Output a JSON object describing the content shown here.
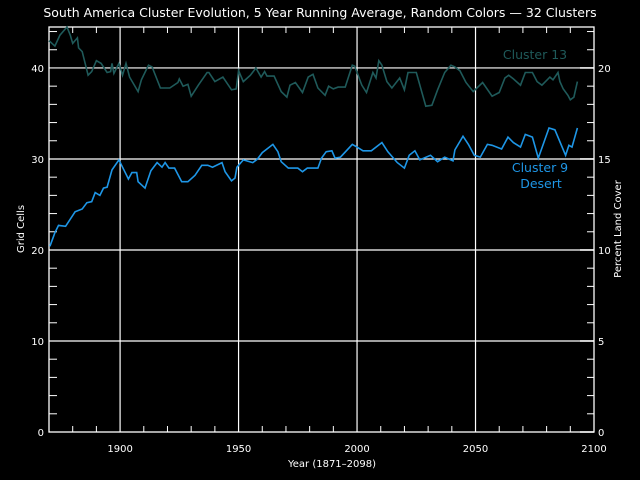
{
  "chart_data": {
    "type": "line",
    "title": "South America Cluster Evolution, 5 Year Running Average, Random Colors — 32 Clusters",
    "xlabel": "Year (1871–2098)",
    "ylabel": "Grid Cells",
    "ylabel_right": "Percent Land Cover",
    "xlim": [
      1870,
      2100
    ],
    "ylim": [
      0,
      44.5
    ],
    "ylim_right": [
      0,
      22.25
    ],
    "xticks": [
      "1900",
      "1950",
      "2000",
      "2050",
      "2100"
    ],
    "xtick_values": [
      1900,
      1950,
      2000,
      2050,
      2100
    ],
    "yticks": [
      "0",
      "10",
      "20",
      "30",
      "40"
    ],
    "ytick_values": [
      0,
      10,
      20,
      30,
      40
    ],
    "yticks_right": [
      "0",
      "5",
      "10",
      "15",
      "20"
    ],
    "ytick_right_values": [
      0,
      5,
      10,
      15,
      20
    ],
    "grid": true,
    "background": "#000000",
    "series": [
      {
        "name": "Cluster 13",
        "label_lines": [
          "Cluster 13"
        ],
        "color": "#1f5a5a",
        "x": [
          1870,
          1872.5,
          1874.6,
          1877.6,
          1879,
          1880,
          1882,
          1882.5,
          1884,
          1886.5,
          1888,
          1890,
          1892,
          1894.5,
          1896,
          1896.6,
          1897.4,
          1899.5,
          1901,
          1902.5,
          1904,
          1907.6,
          1909,
          1912,
          1913.5,
          1917,
          1921,
          1924.4,
          1925,
          1926.6,
          1928.6,
          1930,
          1933,
          1936.7,
          1937.5,
          1940,
          1943.4,
          1947,
          1949,
          1950,
          1952,
          1955,
          1957.3,
          1959.5,
          1961,
          1962,
          1965,
          1968,
          1970.4,
          1971.7,
          1974,
          1977,
          1979.4,
          1981.4,
          1983.5,
          1986.5,
          1988,
          1990,
          1992,
          1995,
          1998,
          1999,
          2002,
          2004,
          2006.7,
          2008,
          2009.2,
          2010.5,
          2012.6,
          2014.7,
          2018,
          2020,
          2021.5,
          2025,
          2029,
          2031.6,
          2034,
          2037,
          2039.6,
          2041.3,
          2043.4,
          2046,
          2049,
          2053,
          2057,
          2060,
          2062.4,
          2064,
          2066,
          2069,
          2071,
          2074,
          2076,
          2078,
          2081.4,
          2082.7,
          2084.8,
          2085.6,
          2087,
          2089,
          2090,
          2091.5,
          2093
        ],
        "y": [
          43.0,
          42.4,
          43.6,
          44.5,
          43.6,
          42.7,
          43.3,
          42.2,
          41.8,
          39.2,
          39.6,
          40.8,
          40.5,
          39.5,
          39.6,
          40.5,
          39.4,
          40.5,
          39.2,
          40.5,
          39.0,
          37.4,
          38.7,
          40.3,
          40.1,
          37.8,
          37.8,
          38.4,
          38.8,
          38.0,
          38.2,
          36.9,
          38.1,
          39.5,
          39.5,
          38.5,
          39.0,
          37.6,
          37.7,
          39.7,
          38.5,
          39.2,
          40.0,
          39.0,
          39.6,
          39.1,
          39.1,
          37.4,
          36.8,
          38.1,
          38.4,
          37.3,
          39.0,
          39.3,
          37.8,
          37.0,
          38.0,
          37.7,
          37.9,
          37.9,
          40.3,
          40.2,
          38.1,
          37.3,
          39.5,
          38.9,
          40.8,
          40.3,
          38.5,
          37.8,
          38.9,
          37.6,
          39.5,
          39.5,
          35.8,
          35.9,
          37.6,
          39.5,
          40.3,
          40.1,
          39.7,
          38.4,
          37.4,
          38.4,
          36.9,
          37.3,
          38.9,
          39.2,
          38.8,
          38.1,
          39.5,
          39.5,
          38.5,
          38.1,
          39.0,
          38.7,
          39.5,
          38.5,
          37.7,
          37.0,
          36.5,
          36.8,
          38.5
        ]
      },
      {
        "name": "Cluster 9 Desert",
        "label_lines": [
          "Cluster 9",
          "Desert"
        ],
        "color": "#1e96e6",
        "x": [
          1870.4,
          1872.5,
          1874,
          1877,
          1881,
          1884,
          1886,
          1888,
          1889.5,
          1891.5,
          1893,
          1894.5,
          1896.6,
          1899.5,
          1902,
          1903.5,
          1905,
          1907,
          1907.6,
          1910.5,
          1913,
          1915.6,
          1917.7,
          1919,
          1920.6,
          1923,
          1926,
          1928.6,
          1931.6,
          1934.5,
          1937,
          1939,
          1943,
          1944.3,
          1947,
          1948.5,
          1949.3,
          1952,
          1956,
          1958,
          1960,
          1964.5,
          1966.6,
          1968,
          1971,
          1975,
          1977,
          1979,
          1983.5,
          1985,
          1987,
          1989.4,
          1990.7,
          1993,
          1998,
          2000,
          2002.5,
          2006,
          2010.5,
          2013,
          2017,
          2020,
          2022,
          2024.4,
          2026.5,
          2031,
          2034,
          2037,
          2040.5,
          2041.3,
          2044.7,
          2047,
          2049.5,
          2052,
          2055,
          2057,
          2061,
          2063.7,
          2066,
          2069,
          2071,
          2074,
          2076.5,
          2081,
          2083.5,
          2088,
          2089.4,
          2090.7,
          2093
        ],
        "y": [
          20.4,
          21.9,
          22.7,
          22.6,
          24.2,
          24.5,
          25.2,
          25.3,
          26.3,
          26.0,
          26.8,
          26.9,
          28.8,
          29.9,
          28.6,
          27.8,
          28.5,
          28.5,
          27.5,
          26.8,
          28.7,
          29.6,
          29.1,
          29.6,
          29.0,
          29.0,
          27.5,
          27.5,
          28.2,
          29.3,
          29.3,
          29.1,
          29.6,
          28.6,
          27.6,
          27.9,
          29.1,
          29.9,
          29.6,
          30.0,
          30.7,
          31.6,
          30.8,
          29.7,
          29.0,
          29.0,
          28.6,
          29.0,
          29.0,
          30.1,
          30.8,
          30.9,
          30.1,
          30.2,
          31.6,
          31.3,
          30.9,
          30.9,
          31.8,
          30.8,
          29.6,
          29.0,
          30.4,
          30.9,
          29.9,
          30.4,
          29.7,
          30.2,
          29.8,
          31.0,
          32.5,
          31.6,
          30.4,
          30.2,
          31.6,
          31.5,
          31.1,
          32.4,
          31.8,
          31.3,
          32.7,
          32.4,
          30.1,
          33.4,
          33.2,
          30.4,
          31.5,
          31.3,
          33.4
        ]
      }
    ]
  }
}
